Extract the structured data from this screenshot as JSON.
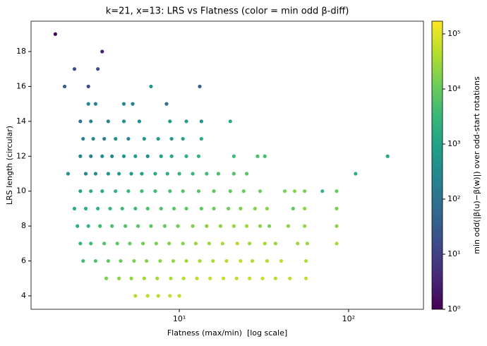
{
  "chart_data": {
    "type": "scatter",
    "title": "k=21, x=13: LRS vs Flatness (color = min odd β-diff)",
    "x_label": "Flatness (max/min)  [log scale]",
    "y_label": "LRS length (circular)",
    "colorbar_label": "min odd(|β(u)−β(w)|) over odd-start rotations",
    "x_scale": "log",
    "colormap": "viridis",
    "color_scale": "log",
    "xlim": [
      1.33,
      277
    ],
    "ylim": [
      3.23,
      19.74
    ],
    "clim": [
      1,
      170000
    ],
    "xticks": [
      {
        "value": 10,
        "label": "10¹"
      },
      {
        "value": 100,
        "label": "10²"
      }
    ],
    "yticks": [
      4,
      6,
      8,
      10,
      12,
      14,
      16,
      18
    ],
    "cticks": [
      {
        "value": 1,
        "label": "10⁰"
      },
      {
        "value": 10,
        "label": "10¹"
      },
      {
        "value": 100,
        "label": "10²"
      },
      {
        "value": 1000,
        "label": "10³"
      },
      {
        "value": 10000,
        "label": "10⁴"
      },
      {
        "value": 100000,
        "label": "10⁵"
      }
    ],
    "x": [
      1.85,
      3.5,
      2.4,
      3.3,
      2.1,
      2.9,
      6.8,
      13.2,
      2.9,
      3.2,
      4.7,
      5.3,
      8.4,
      2.6,
      3.0,
      3.8,
      4.7,
      5.8,
      8.8,
      11,
      13.5,
      20,
      2.7,
      3.1,
      3.6,
      4.2,
      5.0,
      6.2,
      7.5,
      9.0,
      10.5,
      13.5,
      2.6,
      3.0,
      3.5,
      4.0,
      4.7,
      5.5,
      6.5,
      7.8,
      9.0,
      11,
      13,
      21,
      29,
      32,
      170,
      2.2,
      2.8,
      3.2,
      3.8,
      4.4,
      5.2,
      6,
      7.2,
      8.5,
      10,
      12,
      14.5,
      17,
      21,
      25,
      110,
      2.6,
      3.0,
      3.5,
      4.2,
      5.0,
      6.0,
      7.2,
      8.8,
      10.5,
      13,
      16,
      20,
      24,
      30,
      42,
      48,
      55,
      70,
      85,
      2.4,
      2.8,
      3.3,
      3.9,
      4.6,
      5.5,
      6.5,
      7.8,
      9.3,
      11,
      13.5,
      16,
      19.5,
      23,
      28,
      33,
      47,
      55,
      85,
      2.5,
      2.9,
      3.4,
      4.0,
      4.8,
      5.7,
      6.8,
      8.2,
      9.8,
      12,
      14.5,
      17.5,
      21,
      25,
      30,
      34,
      44,
      55,
      85,
      2.6,
      3.0,
      3.6,
      4.3,
      5.1,
      6.1,
      7.3,
      8.7,
      10.5,
      12.5,
      15,
      18,
      22,
      26,
      32,
      37,
      50,
      57,
      85,
      2.7,
      3.2,
      3.8,
      4.5,
      5.4,
      6.4,
      7.7,
      9.2,
      11,
      13.2,
      15.8,
      19,
      23,
      27,
      33,
      40,
      56,
      3.7,
      4.4,
      5.2,
      6.2,
      7.4,
      8.9,
      10.6,
      12.7,
      15.2,
      18.2,
      21.8,
      26,
      31,
      37,
      45,
      56,
      5.5,
      6.5,
      7.5,
      8.8,
      10
    ],
    "y": [
      19,
      18,
      17,
      17,
      16,
      16,
      16,
      16,
      15,
      15,
      15,
      15,
      15,
      14,
      14,
      14,
      14,
      14,
      14,
      14,
      14,
      14,
      13,
      13,
      13,
      13,
      13,
      13,
      13,
      13,
      13,
      13,
      12,
      12,
      12,
      12,
      12,
      12,
      12,
      12,
      12,
      12,
      12,
      12,
      12,
      12,
      12,
      11,
      11,
      11,
      11,
      11,
      11,
      11,
      11,
      11,
      11,
      11,
      11,
      11,
      11,
      11,
      11,
      10,
      10,
      10,
      10,
      10,
      10,
      10,
      10,
      10,
      10,
      10,
      10,
      10,
      10,
      10,
      10,
      10,
      10,
      10,
      9,
      9,
      9,
      9,
      9,
      9,
      9,
      9,
      9,
      9,
      9,
      9,
      9,
      9,
      9,
      9,
      9,
      9,
      9,
      8,
      8,
      8,
      8,
      8,
      8,
      8,
      8,
      8,
      8,
      8,
      8,
      8,
      8,
      8,
      8,
      8,
      8,
      8,
      7,
      7,
      7,
      7,
      7,
      7,
      7,
      7,
      7,
      7,
      7,
      7,
      7,
      7,
      7,
      7,
      7,
      7,
      7,
      6,
      6,
      6,
      6,
      6,
      6,
      6,
      6,
      6,
      6,
      6,
      6,
      6,
      6,
      6,
      6,
      6,
      5,
      5,
      5,
      5,
      5,
      5,
      5,
      5,
      5,
      5,
      5,
      5,
      5,
      5,
      5,
      5,
      4,
      4,
      4,
      4,
      4
    ],
    "c": [
      1,
      3,
      15,
      20,
      40,
      15,
      500,
      40,
      300,
      200,
      300,
      200,
      100,
      100,
      300,
      200,
      500,
      400,
      800,
      900,
      500,
      1500,
      200,
      300,
      150,
      400,
      300,
      500,
      600,
      700,
      1000,
      1500,
      300,
      200,
      400,
      300,
      500,
      800,
      400,
      1000,
      1500,
      2000,
      2500,
      4000,
      5000,
      5000,
      1500,
      500,
      300,
      400,
      600,
      800,
      700,
      1000,
      1500,
      2000,
      2500,
      3000,
      4000,
      5000,
      6000,
      7000,
      2000,
      1000,
      2000,
      1500,
      2500,
      3000,
      3500,
      4000,
      5000,
      6000,
      7000,
      8000,
      9000,
      10000,
      12000,
      15000,
      20000,
      15000,
      2500,
      10000,
      1500,
      2000,
      2500,
      3000,
      3500,
      4000,
      5000,
      6000,
      7000,
      8000,
      9000,
      10000,
      12000,
      15000,
      18000,
      20000,
      8000,
      20000,
      15000,
      2000,
      3000,
      3500,
      5000,
      6000,
      7000,
      8000,
      10000,
      12000,
      15000,
      18000,
      20000,
      25000,
      30000,
      20000,
      15000,
      20000,
      25000,
      20000,
      3000,
      4000,
      6000,
      8000,
      10000,
      12000,
      15000,
      18000,
      20000,
      25000,
      30000,
      35000,
      40000,
      30000,
      35000,
      25000,
      30000,
      25000,
      35000,
      4000,
      6000,
      8000,
      10000,
      15000,
      18000,
      20000,
      25000,
      30000,
      35000,
      40000,
      45000,
      50000,
      40000,
      45000,
      50000,
      40000,
      15000,
      20000,
      25000,
      30000,
      35000,
      40000,
      45000,
      50000,
      55000,
      60000,
      50000,
      55000,
      60000,
      45000,
      50000,
      55000,
      40000,
      50000,
      45000,
      55000,
      50000
    ]
  }
}
